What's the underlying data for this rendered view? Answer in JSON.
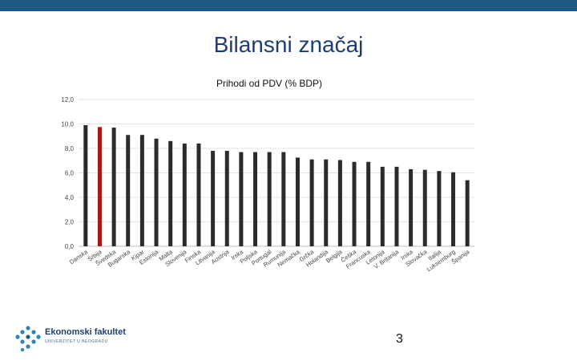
{
  "slide": {
    "title": "Bilansni značaj",
    "page_number": "3"
  },
  "logo": {
    "name": "Ekonomski fakultet",
    "subtitle": "UNIVERZITET U BEOGRADU"
  },
  "colors": {
    "top_bar": "#1f5a85",
    "bar": "#2b2b2b",
    "highlight_bar": "#a31a1a",
    "title": "#1f3e6e",
    "logo": "#2a86b8"
  },
  "chart_data": {
    "type": "bar",
    "title": "Prihodi od PDV (% BDP)",
    "xlabel": "",
    "ylabel": "",
    "ylim": [
      0,
      12
    ],
    "yticks": [
      "0,0",
      "2,0",
      "4,0",
      "6,0",
      "8,0",
      "10,0",
      "12,0"
    ],
    "grid": true,
    "categories": [
      "Danska",
      "Srbija",
      "Švedska",
      "Bugarska",
      "Kipar",
      "Estonija",
      "Malta",
      "Slovenija",
      "Finska",
      "Litvanija",
      "Austrija",
      "Irska",
      "Poljska",
      "Portugal",
      "Rumunija",
      "Nemačka",
      "Grčka",
      "Holandija",
      "Belgija",
      "Češka",
      "Francuska",
      "Letonija",
      "V. Britanija",
      "Irska",
      "Slovačka",
      "Italija",
      "Luksemburg",
      "Španija"
    ],
    "values": [
      9.9,
      9.75,
      9.7,
      9.1,
      9.1,
      8.8,
      8.6,
      8.4,
      8.4,
      7.8,
      7.8,
      7.7,
      7.7,
      7.7,
      7.7,
      7.25,
      7.1,
      7.1,
      7.05,
      6.9,
      6.9,
      6.5,
      6.5,
      6.3,
      6.25,
      6.15,
      6.05,
      5.4
    ],
    "highlight": "Srbija"
  }
}
